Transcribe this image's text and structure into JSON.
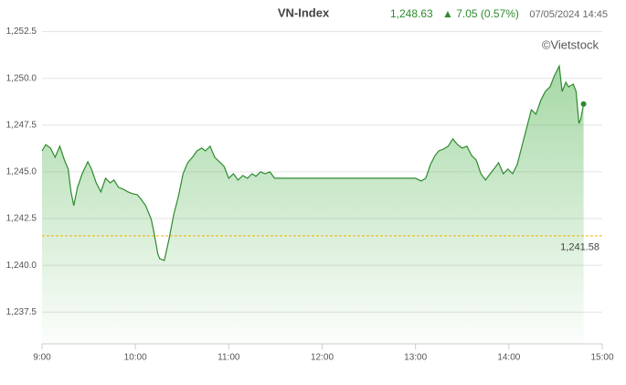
{
  "chart_data": {
    "type": "line",
    "title": "VN-Index",
    "last": "1,248.63",
    "change": "▲ 7.05 (0.57%)",
    "date": "07/05/2024 14:45",
    "credit": "©Vietstock",
    "color": "#2e8b2e",
    "grid": true,
    "xlim": [
      9,
      15
    ],
    "ylim": [
      1235.8,
      1253.8
    ],
    "xticks": [
      {
        "value": 9,
        "label": "9:00"
      },
      {
        "value": 10,
        "label": "10:00"
      },
      {
        "value": 11,
        "label": "11:00"
      },
      {
        "value": 12,
        "label": "12:00"
      },
      {
        "value": 13,
        "label": "13:00"
      },
      {
        "value": 14,
        "label": "14:00"
      },
      {
        "value": 15,
        "label": "15:00"
      }
    ],
    "yticks": [
      {
        "value": 1237.5,
        "label": "1,237.5"
      },
      {
        "value": 1240,
        "label": "1,240.0"
      },
      {
        "value": 1242.5,
        "label": "1,242.5"
      },
      {
        "value": 1245,
        "label": "1,245.0"
      },
      {
        "value": 1247.5,
        "label": "1,247.5"
      },
      {
        "value": 1250,
        "label": "1,250.0"
      },
      {
        "value": 1252.5,
        "label": "1,252.5"
      }
    ],
    "reference": {
      "value": 1241.58,
      "label": "1,241.58"
    },
    "x": [
      9.0,
      9.04,
      9.09,
      9.14,
      9.19,
      9.24,
      9.28,
      9.31,
      9.34,
      9.38,
      9.43,
      9.49,
      9.53,
      9.58,
      9.63,
      9.68,
      9.73,
      9.77,
      9.82,
      9.87,
      9.92,
      9.97,
      10.02,
      10.06,
      10.11,
      10.17,
      10.2,
      10.24,
      10.26,
      10.31,
      10.36,
      10.41,
      10.46,
      10.51,
      10.56,
      10.61,
      10.66,
      10.71,
      10.75,
      10.8,
      10.85,
      10.9,
      10.95,
      11.0,
      11.05,
      11.1,
      11.15,
      11.2,
      11.25,
      11.29,
      11.34,
      11.39,
      11.44,
      11.49,
      13.0,
      13.06,
      13.11,
      13.16,
      13.21,
      13.25,
      13.3,
      13.35,
      13.4,
      13.45,
      13.5,
      13.55,
      13.6,
      13.65,
      13.7,
      13.75,
      13.8,
      13.84,
      13.89,
      13.94,
      13.99,
      14.04,
      14.09,
      14.14,
      14.19,
      14.24,
      14.29,
      14.34,
      14.39,
      14.44,
      14.49,
      14.54,
      14.57,
      14.61,
      14.64,
      14.69,
      14.72,
      14.75,
      14.77,
      14.8
    ],
    "values": [
      1246.12,
      1246.46,
      1246.27,
      1245.78,
      1246.37,
      1245.63,
      1245.15,
      1243.93,
      1243.19,
      1244.17,
      1244.9,
      1245.54,
      1245.15,
      1244.41,
      1243.93,
      1244.66,
      1244.41,
      1244.56,
      1244.17,
      1244.07,
      1243.93,
      1243.83,
      1243.78,
      1243.54,
      1243.19,
      1242.46,
      1241.73,
      1240.61,
      1240.36,
      1240.26,
      1241.39,
      1242.71,
      1243.68,
      1244.9,
      1245.49,
      1245.78,
      1246.12,
      1246.27,
      1246.12,
      1246.37,
      1245.78,
      1245.54,
      1245.29,
      1244.66,
      1244.9,
      1244.56,
      1244.8,
      1244.66,
      1244.9,
      1244.76,
      1245.0,
      1244.9,
      1245.0,
      1244.66,
      1244.66,
      1244.51,
      1244.66,
      1245.39,
      1245.88,
      1246.12,
      1246.22,
      1246.37,
      1246.76,
      1246.46,
      1246.27,
      1246.37,
      1245.88,
      1245.63,
      1244.9,
      1244.56,
      1244.9,
      1245.15,
      1245.49,
      1244.9,
      1245.15,
      1244.9,
      1245.39,
      1246.37,
      1247.34,
      1248.32,
      1248.08,
      1248.81,
      1249.3,
      1249.54,
      1250.17,
      1250.66,
      1249.3,
      1249.79,
      1249.54,
      1249.69,
      1249.3,
      1247.59,
      1247.83,
      1248.63
    ]
  }
}
